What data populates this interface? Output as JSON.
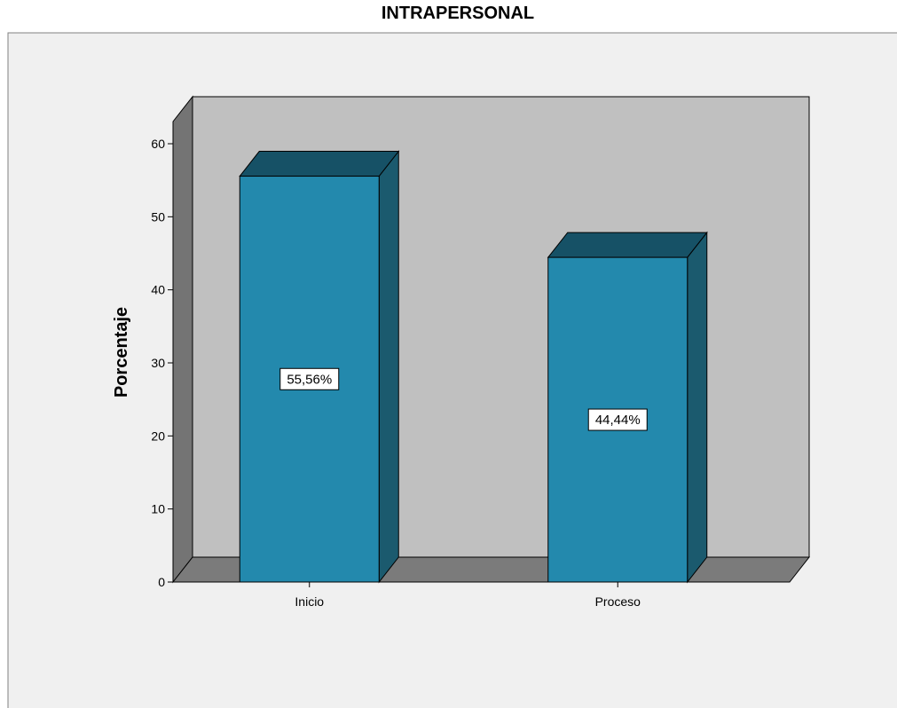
{
  "chart_data": {
    "type": "bar",
    "title": "INTRAPERSONAL",
    "xlabel": "",
    "ylabel": "Porcentaje",
    "categories": [
      "Inicio",
      "Proceso"
    ],
    "values": [
      55.56,
      44.44
    ],
    "data_labels": [
      "55,56%",
      "44,44%"
    ],
    "ylim": [
      0,
      60
    ],
    "yticks": [
      0,
      10,
      20,
      30,
      40,
      50,
      60
    ],
    "grid": false,
    "legend": "none",
    "style": "3d",
    "colors": {
      "bar_front": "#2389ad",
      "bar_side": "#1b5a6e",
      "bar_top": "#165166",
      "wall": "#c0c0c0",
      "floor": "#7b7b7b",
      "side_wall": "#747474",
      "background": "#f0f0f0"
    }
  }
}
